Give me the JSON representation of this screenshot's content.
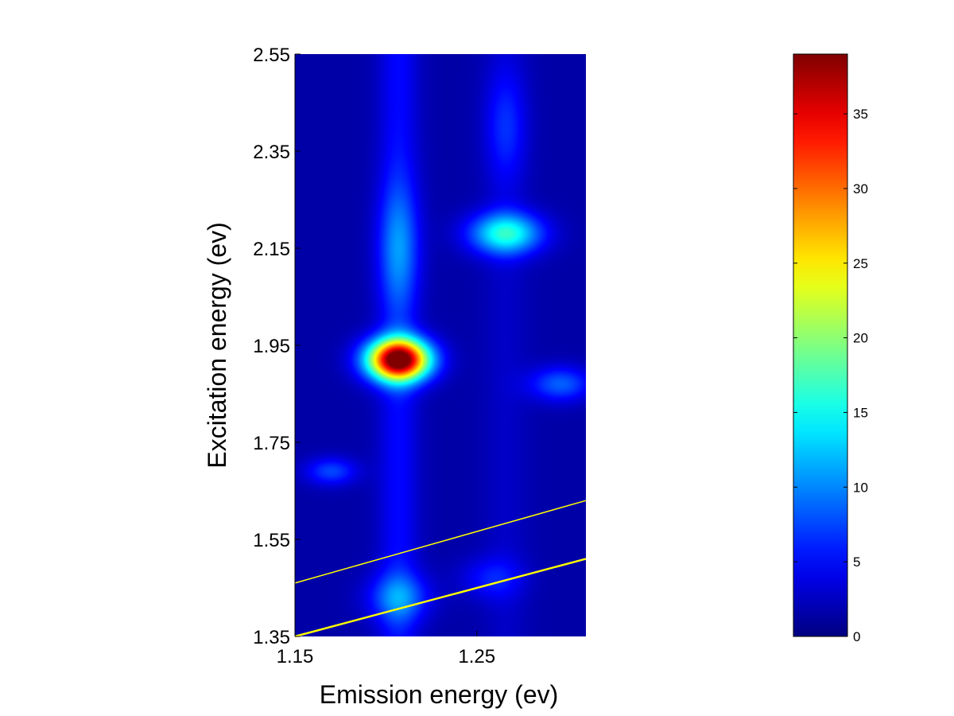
{
  "chart_data": {
    "type": "heatmap",
    "xlabel": "Emission energy (ev)",
    "ylabel": "Excitation energy (ev)",
    "xlim": [
      1.15,
      1.31
    ],
    "ylim": [
      1.35,
      2.55
    ],
    "xticks": [
      "1.15",
      "1.25"
    ],
    "xtick_values": [
      1.15,
      1.25
    ],
    "yticks": [
      "1.35",
      "1.55",
      "1.75",
      "1.95",
      "2.15",
      "2.35",
      "2.55"
    ],
    "ytick_values": [
      1.35,
      1.55,
      1.75,
      1.95,
      2.15,
      2.35,
      2.55
    ],
    "colormap": "jet",
    "colorbar": {
      "range": [
        0,
        39
      ],
      "ticks": [
        "0",
        "5",
        "10",
        "15",
        "20",
        "25",
        "30",
        "35"
      ],
      "tick_values": [
        0,
        5,
        10,
        15,
        20,
        25,
        30,
        35
      ],
      "position": "right"
    },
    "background_value": 1.5,
    "peaks": [
      {
        "x": 1.207,
        "y": 1.92,
        "value": 39,
        "sx": 0.012,
        "sy": 0.03
      },
      {
        "x": 1.266,
        "y": 2.18,
        "value": 14,
        "sx": 0.014,
        "sy": 0.03
      },
      {
        "x": 1.207,
        "y": 2.15,
        "value": 6,
        "sx": 0.008,
        "sy": 0.09
      },
      {
        "x": 1.207,
        "y": 1.43,
        "value": 7,
        "sx": 0.012,
        "sy": 0.035
      },
      {
        "x": 1.296,
        "y": 1.87,
        "value": 7,
        "sx": 0.012,
        "sy": 0.025
      },
      {
        "x": 1.17,
        "y": 1.69,
        "value": 6,
        "sx": 0.01,
        "sy": 0.02
      },
      {
        "x": 1.266,
        "y": 2.4,
        "value": 4,
        "sx": 0.008,
        "sy": 0.08
      },
      {
        "x": 1.258,
        "y": 1.47,
        "value": 4,
        "sx": 0.012,
        "sy": 0.03
      }
    ],
    "ridges": [
      {
        "x": 1.207,
        "value": 3.5,
        "sx": 0.008
      },
      {
        "x": 1.266,
        "value": 1.2,
        "sx": 0.009
      }
    ],
    "lines": [
      {
        "name": "",
        "color": "#ffff00",
        "points": [
          [
            1.15,
            1.46
          ],
          [
            1.31,
            1.63
          ]
        ]
      },
      {
        "name": "",
        "color": "#ffff00",
        "points": [
          [
            1.15,
            1.35
          ],
          [
            1.31,
            1.51
          ]
        ]
      }
    ]
  }
}
